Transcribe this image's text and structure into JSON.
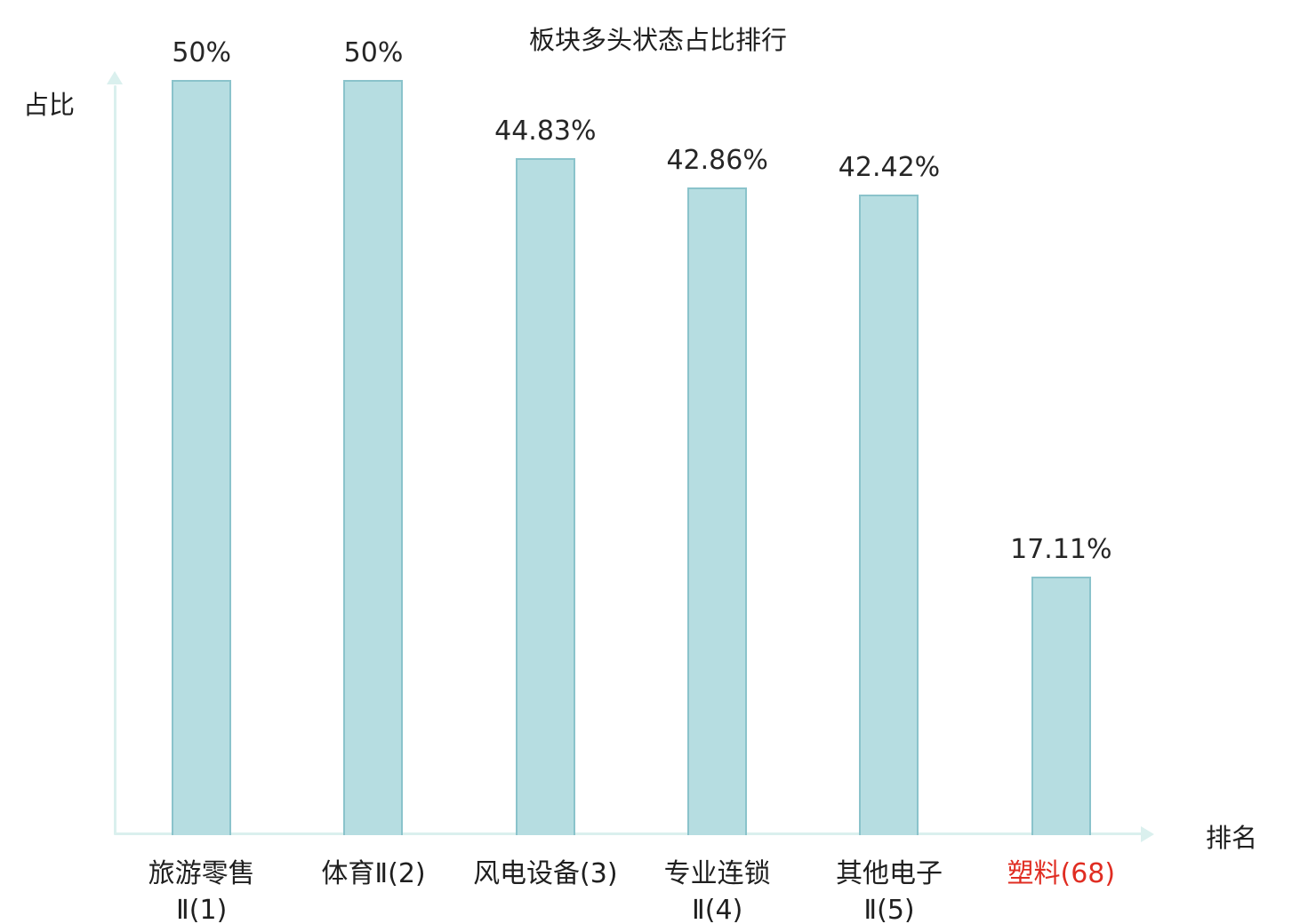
{
  "chart_data": {
    "type": "bar",
    "title": "板块多头状态占比排行",
    "xlabel": "排名",
    "ylabel": "占比",
    "ylim": [
      0,
      50
    ],
    "grid": false,
    "legend": false,
    "categories": [
      "旅游零售Ⅱ(1)",
      "体育Ⅱ(2)",
      "风电设备(3)",
      "专业连锁Ⅱ(4)",
      "其他电子Ⅱ(5)",
      "塑料(68)"
    ],
    "values": [
      50,
      50,
      44.83,
      42.86,
      42.42,
      17.11
    ],
    "bars": [
      {
        "label_lines": [
          "旅游零售",
          "Ⅱ(1)"
        ],
        "value": 50,
        "value_label": "50%",
        "highlight": false
      },
      {
        "label_lines": [
          "体育Ⅱ(2)"
        ],
        "value": 50,
        "value_label": "50%",
        "highlight": false
      },
      {
        "label_lines": [
          "风电设备(3)"
        ],
        "value": 44.83,
        "value_label": "44.83%",
        "highlight": false
      },
      {
        "label_lines": [
          "专业连锁",
          "Ⅱ(4)"
        ],
        "value": 42.86,
        "value_label": "42.86%",
        "highlight": false
      },
      {
        "label_lines": [
          "其他电子",
          "Ⅱ(5)"
        ],
        "value": 42.42,
        "value_label": "42.42%",
        "highlight": false
      },
      {
        "label_lines": [
          "塑料(68)"
        ],
        "value": 17.11,
        "value_label": "17.11%",
        "highlight": true
      }
    ],
    "colors": {
      "bar_fill": "#b6dde1",
      "bar_border": "#8ac3cb",
      "axis": "#daf0ee",
      "text": "#1f1f1f",
      "highlight_text": "#e02d22"
    }
  }
}
